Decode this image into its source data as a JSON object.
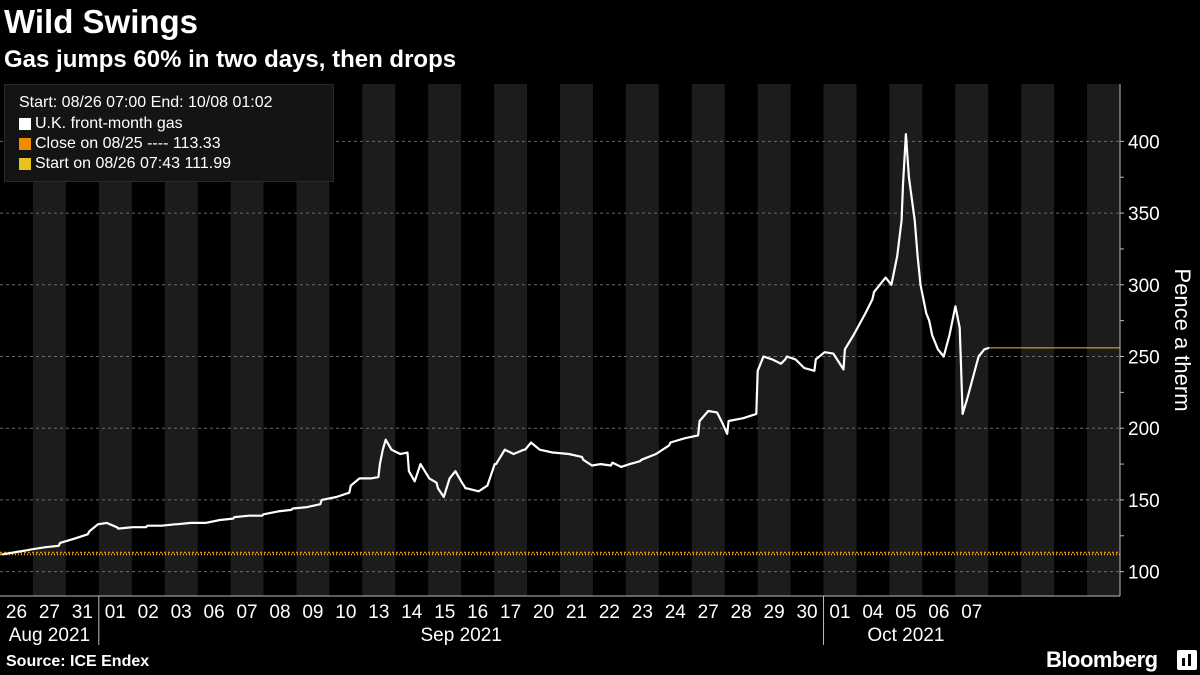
{
  "header": {
    "title": "Wild Swings",
    "subtitle": "Gas jumps 60% in two days, then drops"
  },
  "footer": {
    "source": "Source: ICE Endex",
    "brand": "Bloomberg"
  },
  "legend": {
    "range": "Start: 08/26 07:00 End: 10/08 01:02",
    "items": [
      {
        "label": "U.K. front-month gas",
        "color": "#ffffff"
      },
      {
        "label": "Close on 08/25 ----  113.33",
        "color": "#f08c00"
      },
      {
        "label": "Start on 08/26 07:43 111.99",
        "color": "#e8c21c"
      }
    ]
  },
  "chart_data": {
    "type": "line",
    "title": "Wild Swings",
    "subtitle": "Gas jumps 60% in two days, then drops",
    "ylabel": "Pence a therm",
    "xlabel": "",
    "ylim": [
      83,
      440
    ],
    "yticks": [
      100,
      150,
      200,
      250,
      300,
      350,
      400
    ],
    "grid": true,
    "days": [
      "26",
      "27",
      "31",
      "01",
      "02",
      "03",
      "06",
      "07",
      "08",
      "09",
      "10",
      "13",
      "14",
      "15",
      "16",
      "17",
      "20",
      "21",
      "22",
      "23",
      "24",
      "27",
      "28",
      "29",
      "30",
      "01",
      "04",
      "05",
      "06",
      "07"
    ],
    "months": [
      {
        "label": "Aug 2021",
        "start": 0,
        "end": 3
      },
      {
        "label": "Sep 2021",
        "start": 3,
        "end": 25
      },
      {
        "label": "Oct 2021",
        "start": 25,
        "end": 30
      }
    ],
    "reference_lines": [
      {
        "name": "Close on 08/25",
        "value": 113.33,
        "color": "#f08c00"
      },
      {
        "name": "Start on 08/26 07:43",
        "value": 111.99,
        "color": "#e8c21c"
      }
    ],
    "series": [
      {
        "name": "U.K. front-month gas",
        "color": "#ffffff",
        "points": [
          [
            0.0,
            111.99
          ],
          [
            0.3,
            113
          ],
          [
            0.6,
            114
          ],
          [
            0.9,
            115
          ],
          [
            1.0,
            115.5
          ],
          [
            1.5,
            117
          ],
          [
            1.95,
            118
          ],
          [
            2.0,
            120
          ],
          [
            2.5,
            123
          ],
          [
            2.95,
            126
          ],
          [
            3.0,
            128
          ],
          [
            3.3,
            133
          ],
          [
            3.6,
            134
          ],
          [
            3.95,
            131
          ],
          [
            4.0,
            130
          ],
          [
            4.5,
            131
          ],
          [
            4.95,
            131
          ],
          [
            5.0,
            132
          ],
          [
            5.5,
            132
          ],
          [
            5.95,
            133
          ],
          [
            6.0,
            133
          ],
          [
            6.5,
            134
          ],
          [
            6.95,
            134
          ],
          [
            7.0,
            134
          ],
          [
            7.5,
            136
          ],
          [
            7.95,
            137
          ],
          [
            8.0,
            138
          ],
          [
            8.5,
            139
          ],
          [
            8.95,
            139
          ],
          [
            9.0,
            140
          ],
          [
            9.5,
            142
          ],
          [
            9.95,
            143
          ],
          [
            10.0,
            144
          ],
          [
            10.5,
            145
          ],
          [
            10.95,
            147
          ],
          [
            11.0,
            150
          ],
          [
            11.5,
            152
          ],
          [
            11.95,
            155
          ],
          [
            12.0,
            160
          ],
          [
            12.3,
            165
          ],
          [
            12.7,
            165
          ],
          [
            12.95,
            166
          ],
          [
            13.0,
            175
          ],
          [
            13.1,
            185
          ],
          [
            13.2,
            192
          ],
          [
            13.4,
            185
          ],
          [
            13.7,
            182
          ],
          [
            13.95,
            183
          ],
          [
            14.0,
            170
          ],
          [
            14.2,
            163
          ],
          [
            14.4,
            175
          ],
          [
            14.7,
            165
          ],
          [
            14.95,
            162
          ],
          [
            15.0,
            158
          ],
          [
            15.2,
            152
          ],
          [
            15.4,
            165
          ],
          [
            15.6,
            170
          ],
          [
            15.8,
            163
          ],
          [
            15.95,
            158
          ],
          [
            16.0,
            158
          ],
          [
            16.4,
            156
          ],
          [
            16.7,
            160
          ],
          [
            16.95,
            175
          ],
          [
            17.0,
            175
          ],
          [
            17.3,
            185
          ],
          [
            17.6,
            182
          ],
          [
            17.95,
            185
          ],
          [
            18.0,
            185
          ],
          [
            18.2,
            190
          ],
          [
            18.5,
            185
          ],
          [
            18.95,
            183
          ],
          [
            19.0,
            183
          ],
          [
            19.5,
            182
          ],
          [
            19.95,
            180
          ],
          [
            20.0,
            178
          ],
          [
            20.3,
            174
          ],
          [
            20.6,
            175
          ],
          [
            20.95,
            174
          ],
          [
            21.0,
            176
          ],
          [
            21.3,
            173
          ],
          [
            21.6,
            175
          ],
          [
            21.95,
            177
          ],
          [
            22.0,
            178
          ],
          [
            22.5,
            182
          ],
          [
            22.95,
            188
          ],
          [
            23.0,
            190
          ],
          [
            23.5,
            193
          ],
          [
            23.95,
            195
          ],
          [
            24.0,
            205
          ],
          [
            24.3,
            212
          ],
          [
            24.6,
            211
          ],
          [
            24.8,
            203
          ],
          [
            24.95,
            196
          ],
          [
            25.0,
            205
          ],
          [
            25.5,
            207
          ],
          [
            25.95,
            210
          ],
          [
            26.0,
            240
          ],
          [
            26.2,
            250
          ],
          [
            26.5,
            248
          ],
          [
            26.8,
            245
          ],
          [
            26.95,
            248
          ],
          [
            27.0,
            250
          ],
          [
            27.3,
            248
          ],
          [
            27.6,
            242
          ],
          [
            27.95,
            240
          ],
          [
            28.0,
            248
          ],
          [
            28.3,
            253
          ],
          [
            28.6,
            252
          ],
          [
            28.95,
            241
          ],
          [
            29.0,
            255
          ],
          [
            29.3,
            265
          ],
          [
            29.7,
            280
          ],
          [
            29.95,
            290
          ],
          [
            30.0,
            295
          ],
          [
            30.2,
            300
          ],
          [
            30.4,
            305
          ],
          [
            30.6,
            300
          ],
          [
            30.8,
            320
          ],
          [
            30.95,
            345
          ],
          [
            31.0,
            370
          ],
          [
            31.1,
            405
          ],
          [
            31.2,
            375
          ],
          [
            31.3,
            360
          ],
          [
            31.4,
            345
          ],
          [
            31.5,
            320
          ],
          [
            31.6,
            300
          ],
          [
            31.7,
            290
          ],
          [
            31.8,
            280
          ],
          [
            31.9,
            275
          ],
          [
            31.95,
            270
          ],
          [
            32.0,
            265
          ],
          [
            32.2,
            255
          ],
          [
            32.4,
            250
          ],
          [
            32.6,
            265
          ],
          [
            32.8,
            285
          ],
          [
            32.95,
            270
          ],
          [
            33.0,
            240
          ],
          [
            33.05,
            210
          ],
          [
            33.2,
            220
          ],
          [
            33.4,
            235
          ],
          [
            33.6,
            250
          ],
          [
            33.8,
            255
          ],
          [
            33.95,
            256
          ]
        ]
      }
    ]
  }
}
